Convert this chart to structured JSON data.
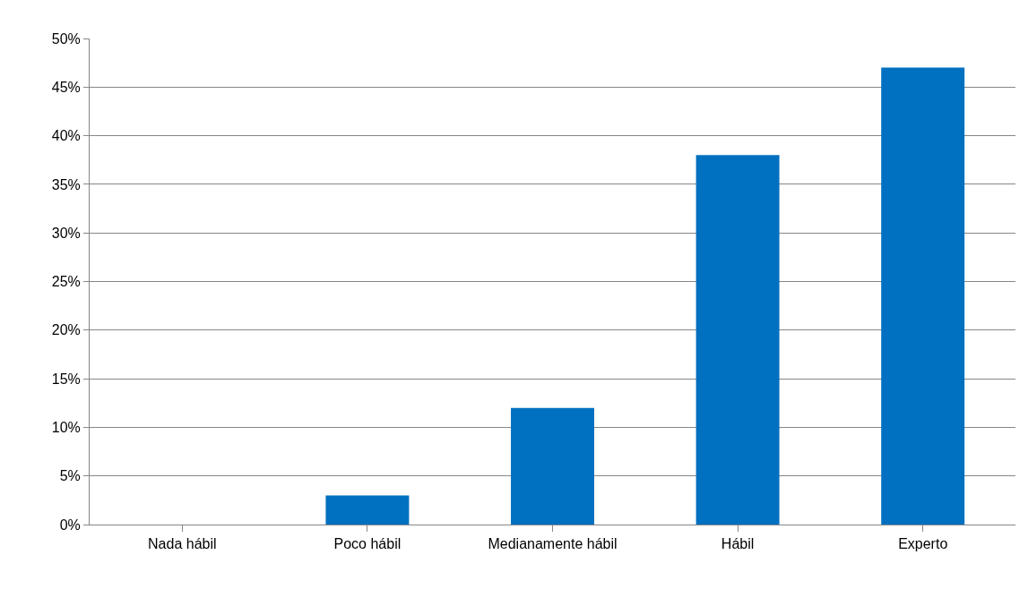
{
  "chart_data": {
    "type": "bar",
    "categories": [
      "Nada hábil",
      "Poco hábil",
      "Medianamente hábil",
      "Hábil",
      "Experto"
    ],
    "values": [
      0,
      3,
      12,
      38,
      47
    ],
    "color": "#0070c0",
    "ylim": [
      0,
      50
    ],
    "yticks": [
      {
        "value": 0,
        "label": "0%"
      },
      {
        "value": 5,
        "label": "5%"
      },
      {
        "value": 10,
        "label": "10%"
      },
      {
        "value": 15,
        "label": "15%"
      },
      {
        "value": 20,
        "label": "20%"
      },
      {
        "value": 25,
        "label": "25%"
      },
      {
        "value": 30,
        "label": "30%"
      },
      {
        "value": 35,
        "label": "35%"
      },
      {
        "value": 40,
        "label": "40%"
      },
      {
        "value": 45,
        "label": "45%"
      },
      {
        "value": 50,
        "label": "50%"
      }
    ],
    "grid": "y"
  }
}
